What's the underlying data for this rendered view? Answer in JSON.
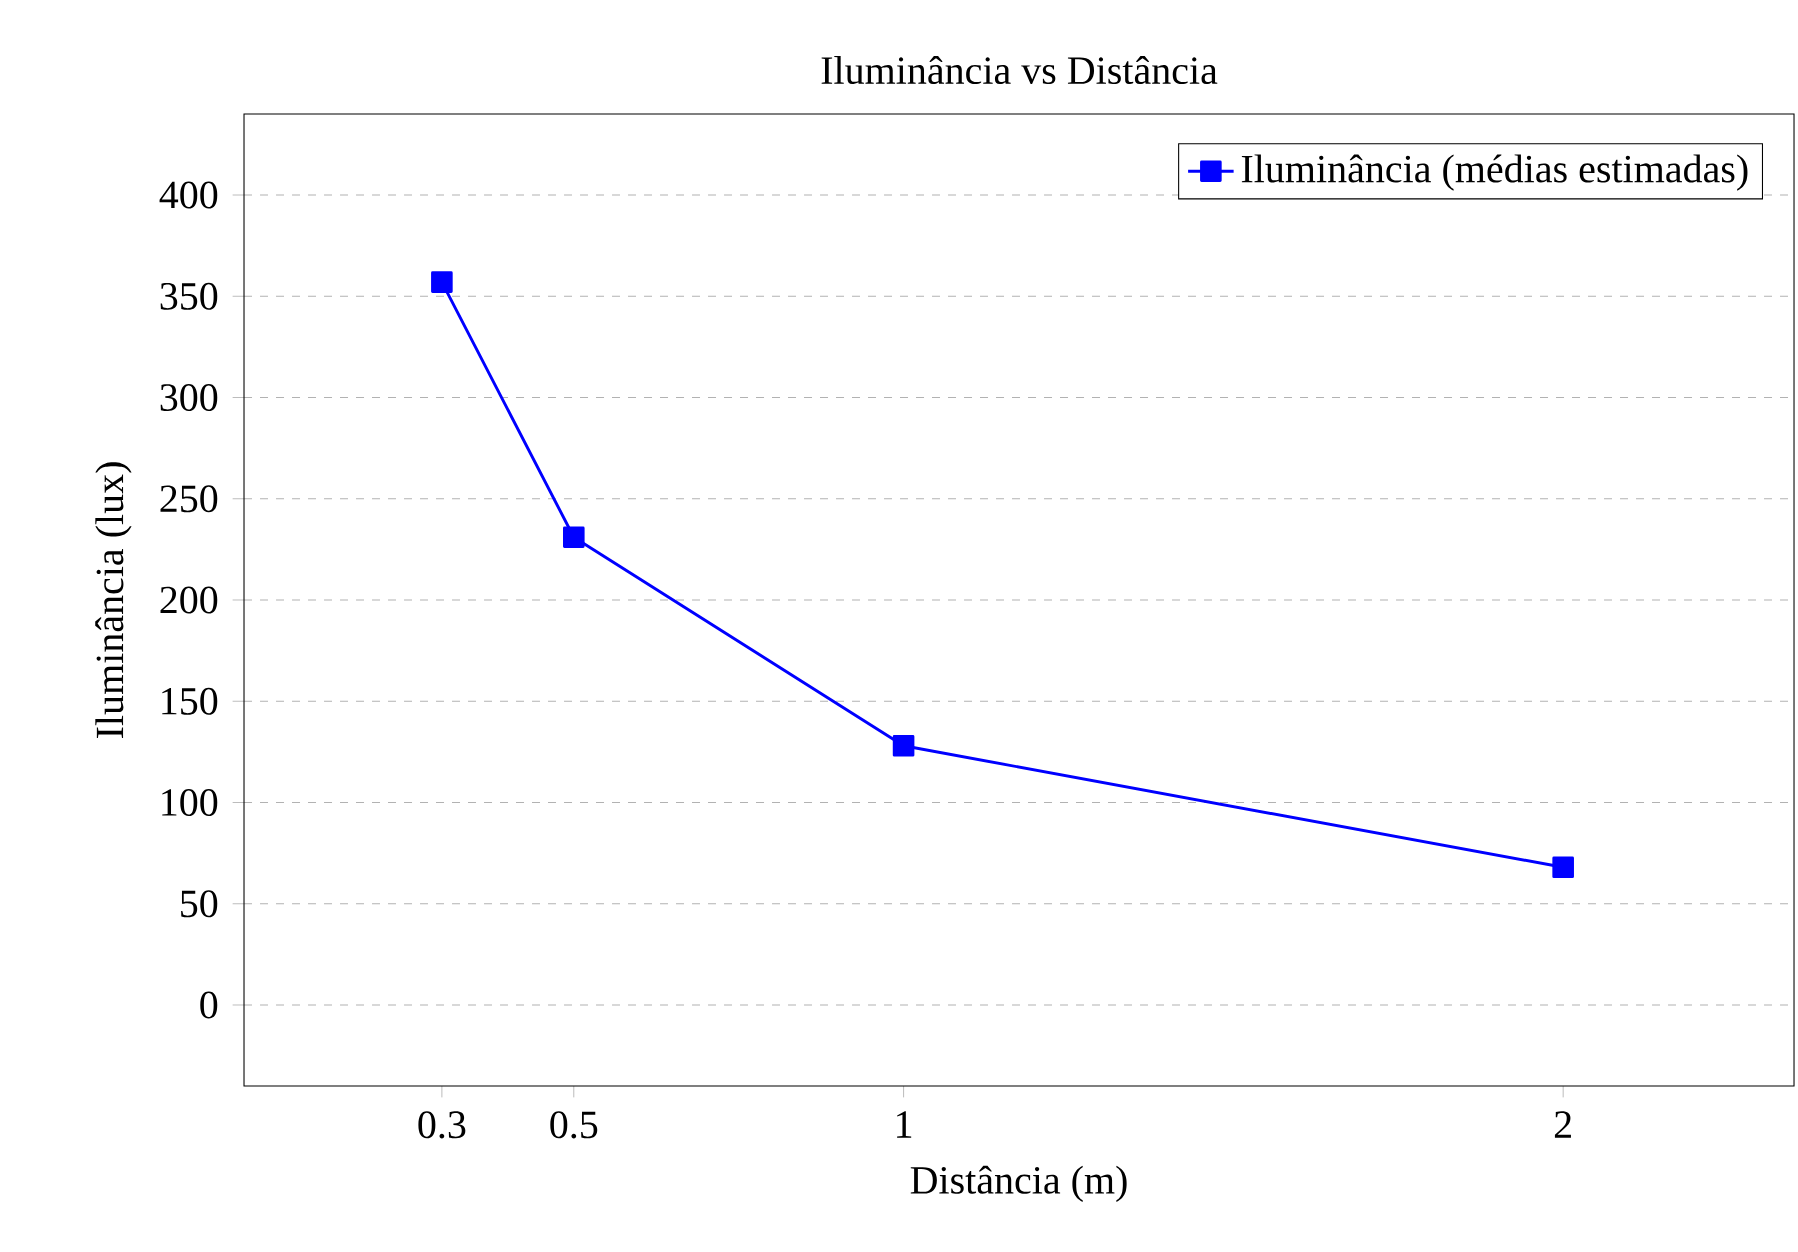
{
  "chart_data": {
    "type": "line",
    "title": "Iluminância vs Distância",
    "xlabel": "Distância (m)",
    "ylabel": "Iluminância (lux)",
    "x": [
      0.3,
      0.5,
      1,
      2
    ],
    "series": [
      {
        "name": "Iluminância (médias estimadas)",
        "color": "#0000ff",
        "values": [
          357,
          231,
          128,
          68
        ]
      }
    ],
    "xlim": [
      0,
      2.35
    ],
    "ylim": [
      -40,
      440
    ],
    "xticks": [
      0.3,
      0.5,
      1,
      2
    ],
    "yticks": [
      0,
      50,
      100,
      150,
      200,
      250,
      300,
      350,
      400
    ],
    "grid": "y",
    "legend": "top right",
    "marker": "square",
    "line_style": "solid"
  }
}
